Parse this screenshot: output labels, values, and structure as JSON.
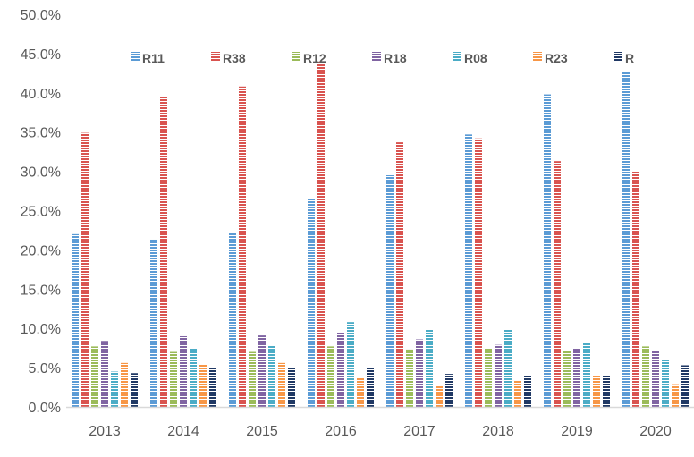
{
  "chart_data": {
    "type": "bar",
    "title": "",
    "xlabel": "",
    "ylabel": "",
    "ylim": [
      0,
      50
    ],
    "y_ticks": [
      "0.0%",
      "5.0%",
      "10.0%",
      "15.0%",
      "20.0%",
      "25.0%",
      "30.0%",
      "35.0%",
      "40.0%",
      "45.0%",
      "50.0%"
    ],
    "legend_position": "top",
    "grid": false,
    "categories": [
      "2013",
      "2014",
      "2015",
      "2016",
      "2017",
      "2018",
      "2019",
      "2020"
    ],
    "series": [
      {
        "name": "R11",
        "color": "#5b9bd5",
        "values": [
          22.0,
          21.3,
          22.2,
          26.5,
          29.5,
          34.7,
          39.8,
          42.7
        ]
      },
      {
        "name": "R38",
        "color": "#d9534f",
        "values": [
          34.9,
          39.5,
          40.8,
          44.0,
          33.7,
          34.2,
          31.3,
          30.0
        ]
      },
      {
        "name": "R12",
        "color": "#9bbb59",
        "values": [
          7.7,
          7.0,
          7.0,
          7.7,
          7.3,
          7.5,
          7.1,
          7.7
        ]
      },
      {
        "name": "R18",
        "color": "#8064a2",
        "values": [
          8.4,
          9.0,
          9.1,
          9.5,
          8.6,
          7.9,
          7.5,
          7.1
        ]
      },
      {
        "name": "R08",
        "color": "#4bacc6",
        "values": [
          4.5,
          7.5,
          7.8,
          10.8,
          9.8,
          9.9,
          8.2,
          6.0
        ]
      },
      {
        "name": "R23",
        "color": "#f79646",
        "values": [
          5.6,
          5.4,
          5.6,
          3.7,
          2.8,
          3.4,
          4.0,
          2.9
        ]
      },
      {
        "name": "R",
        "color": "#1f3864",
        "values": [
          4.3,
          5.0,
          5.1,
          5.1,
          4.2,
          4.1,
          4.0,
          5.3
        ]
      }
    ]
  }
}
